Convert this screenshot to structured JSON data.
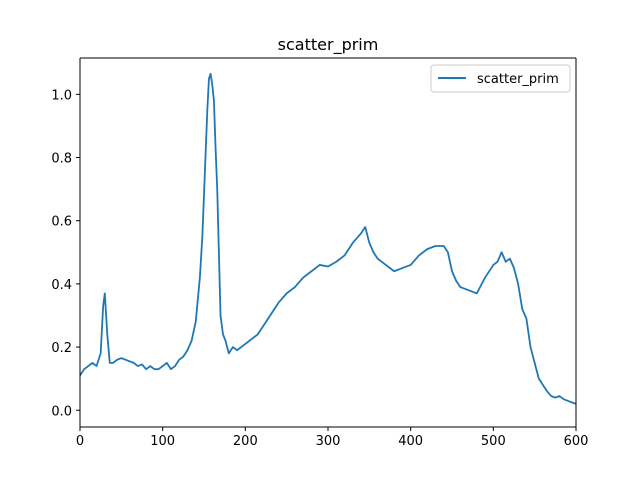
{
  "chart_data": {
    "type": "line",
    "title": "scatter_prim",
    "xlabel": "",
    "ylabel": "",
    "xlim": [
      0,
      600
    ],
    "ylim": [
      -0.053,
      1.115
    ],
    "xticks": [
      0,
      100,
      200,
      300,
      400,
      500,
      600
    ],
    "yticks": [
      0.0,
      0.2,
      0.4,
      0.6,
      0.8,
      1.0
    ],
    "xtick_labels": [
      "0",
      "100",
      "200",
      "300",
      "400",
      "500",
      "600"
    ],
    "ytick_labels": [
      "0.0",
      "0.2",
      "0.4",
      "0.6",
      "0.8",
      "1.0"
    ],
    "grid": false,
    "legend": "top-right",
    "series": [
      {
        "name": "scatter_prim",
        "color": "#1f77b4",
        "x": [
          0,
          5,
          10,
          15,
          20,
          25,
          28,
          30,
          33,
          36,
          40,
          45,
          50,
          55,
          60,
          65,
          70,
          75,
          80,
          85,
          90,
          95,
          100,
          105,
          110,
          115,
          120,
          125,
          130,
          135,
          140,
          145,
          148,
          151,
          154,
          156,
          158,
          160,
          162,
          164,
          166,
          168,
          170,
          173,
          176,
          180,
          185,
          190,
          195,
          200,
          205,
          210,
          215,
          220,
          230,
          240,
          250,
          260,
          270,
          280,
          290,
          300,
          310,
          320,
          330,
          340,
          345,
          350,
          355,
          360,
          370,
          380,
          390,
          400,
          410,
          420,
          430,
          440,
          445,
          450,
          455,
          460,
          470,
          480,
          490,
          500,
          505,
          510,
          515,
          520,
          525,
          530,
          535,
          540,
          545,
          550,
          555,
          560,
          565,
          570,
          575,
          580,
          585,
          590,
          595,
          600
        ],
        "y": [
          0.11,
          0.13,
          0.14,
          0.15,
          0.14,
          0.18,
          0.33,
          0.37,
          0.24,
          0.15,
          0.15,
          0.16,
          0.165,
          0.16,
          0.155,
          0.15,
          0.14,
          0.145,
          0.13,
          0.14,
          0.13,
          0.13,
          0.14,
          0.15,
          0.13,
          0.14,
          0.16,
          0.17,
          0.19,
          0.22,
          0.28,
          0.42,
          0.55,
          0.75,
          0.95,
          1.05,
          1.065,
          1.03,
          0.98,
          0.83,
          0.7,
          0.5,
          0.3,
          0.24,
          0.22,
          0.18,
          0.2,
          0.19,
          0.2,
          0.21,
          0.22,
          0.23,
          0.24,
          0.26,
          0.3,
          0.34,
          0.37,
          0.39,
          0.42,
          0.44,
          0.46,
          0.455,
          0.47,
          0.49,
          0.53,
          0.56,
          0.58,
          0.53,
          0.5,
          0.48,
          0.46,
          0.44,
          0.45,
          0.46,
          0.49,
          0.51,
          0.52,
          0.52,
          0.5,
          0.44,
          0.41,
          0.39,
          0.38,
          0.37,
          0.42,
          0.46,
          0.47,
          0.5,
          0.47,
          0.48,
          0.45,
          0.4,
          0.32,
          0.29,
          0.2,
          0.15,
          0.1,
          0.08,
          0.06,
          0.045,
          0.04,
          0.045,
          0.035,
          0.03,
          0.025,
          0.02
        ]
      }
    ]
  }
}
